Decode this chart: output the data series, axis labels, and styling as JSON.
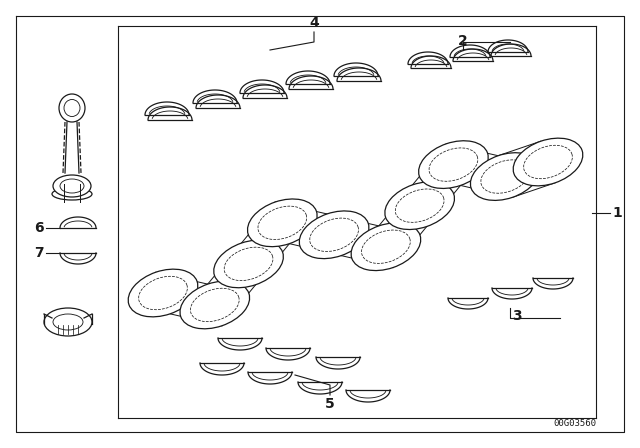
{
  "background_color": "#ffffff",
  "line_color": "#1a1a1a",
  "part_number": "00G03560",
  "fig_width": 6.4,
  "fig_height": 4.48,
  "dpi": 100
}
